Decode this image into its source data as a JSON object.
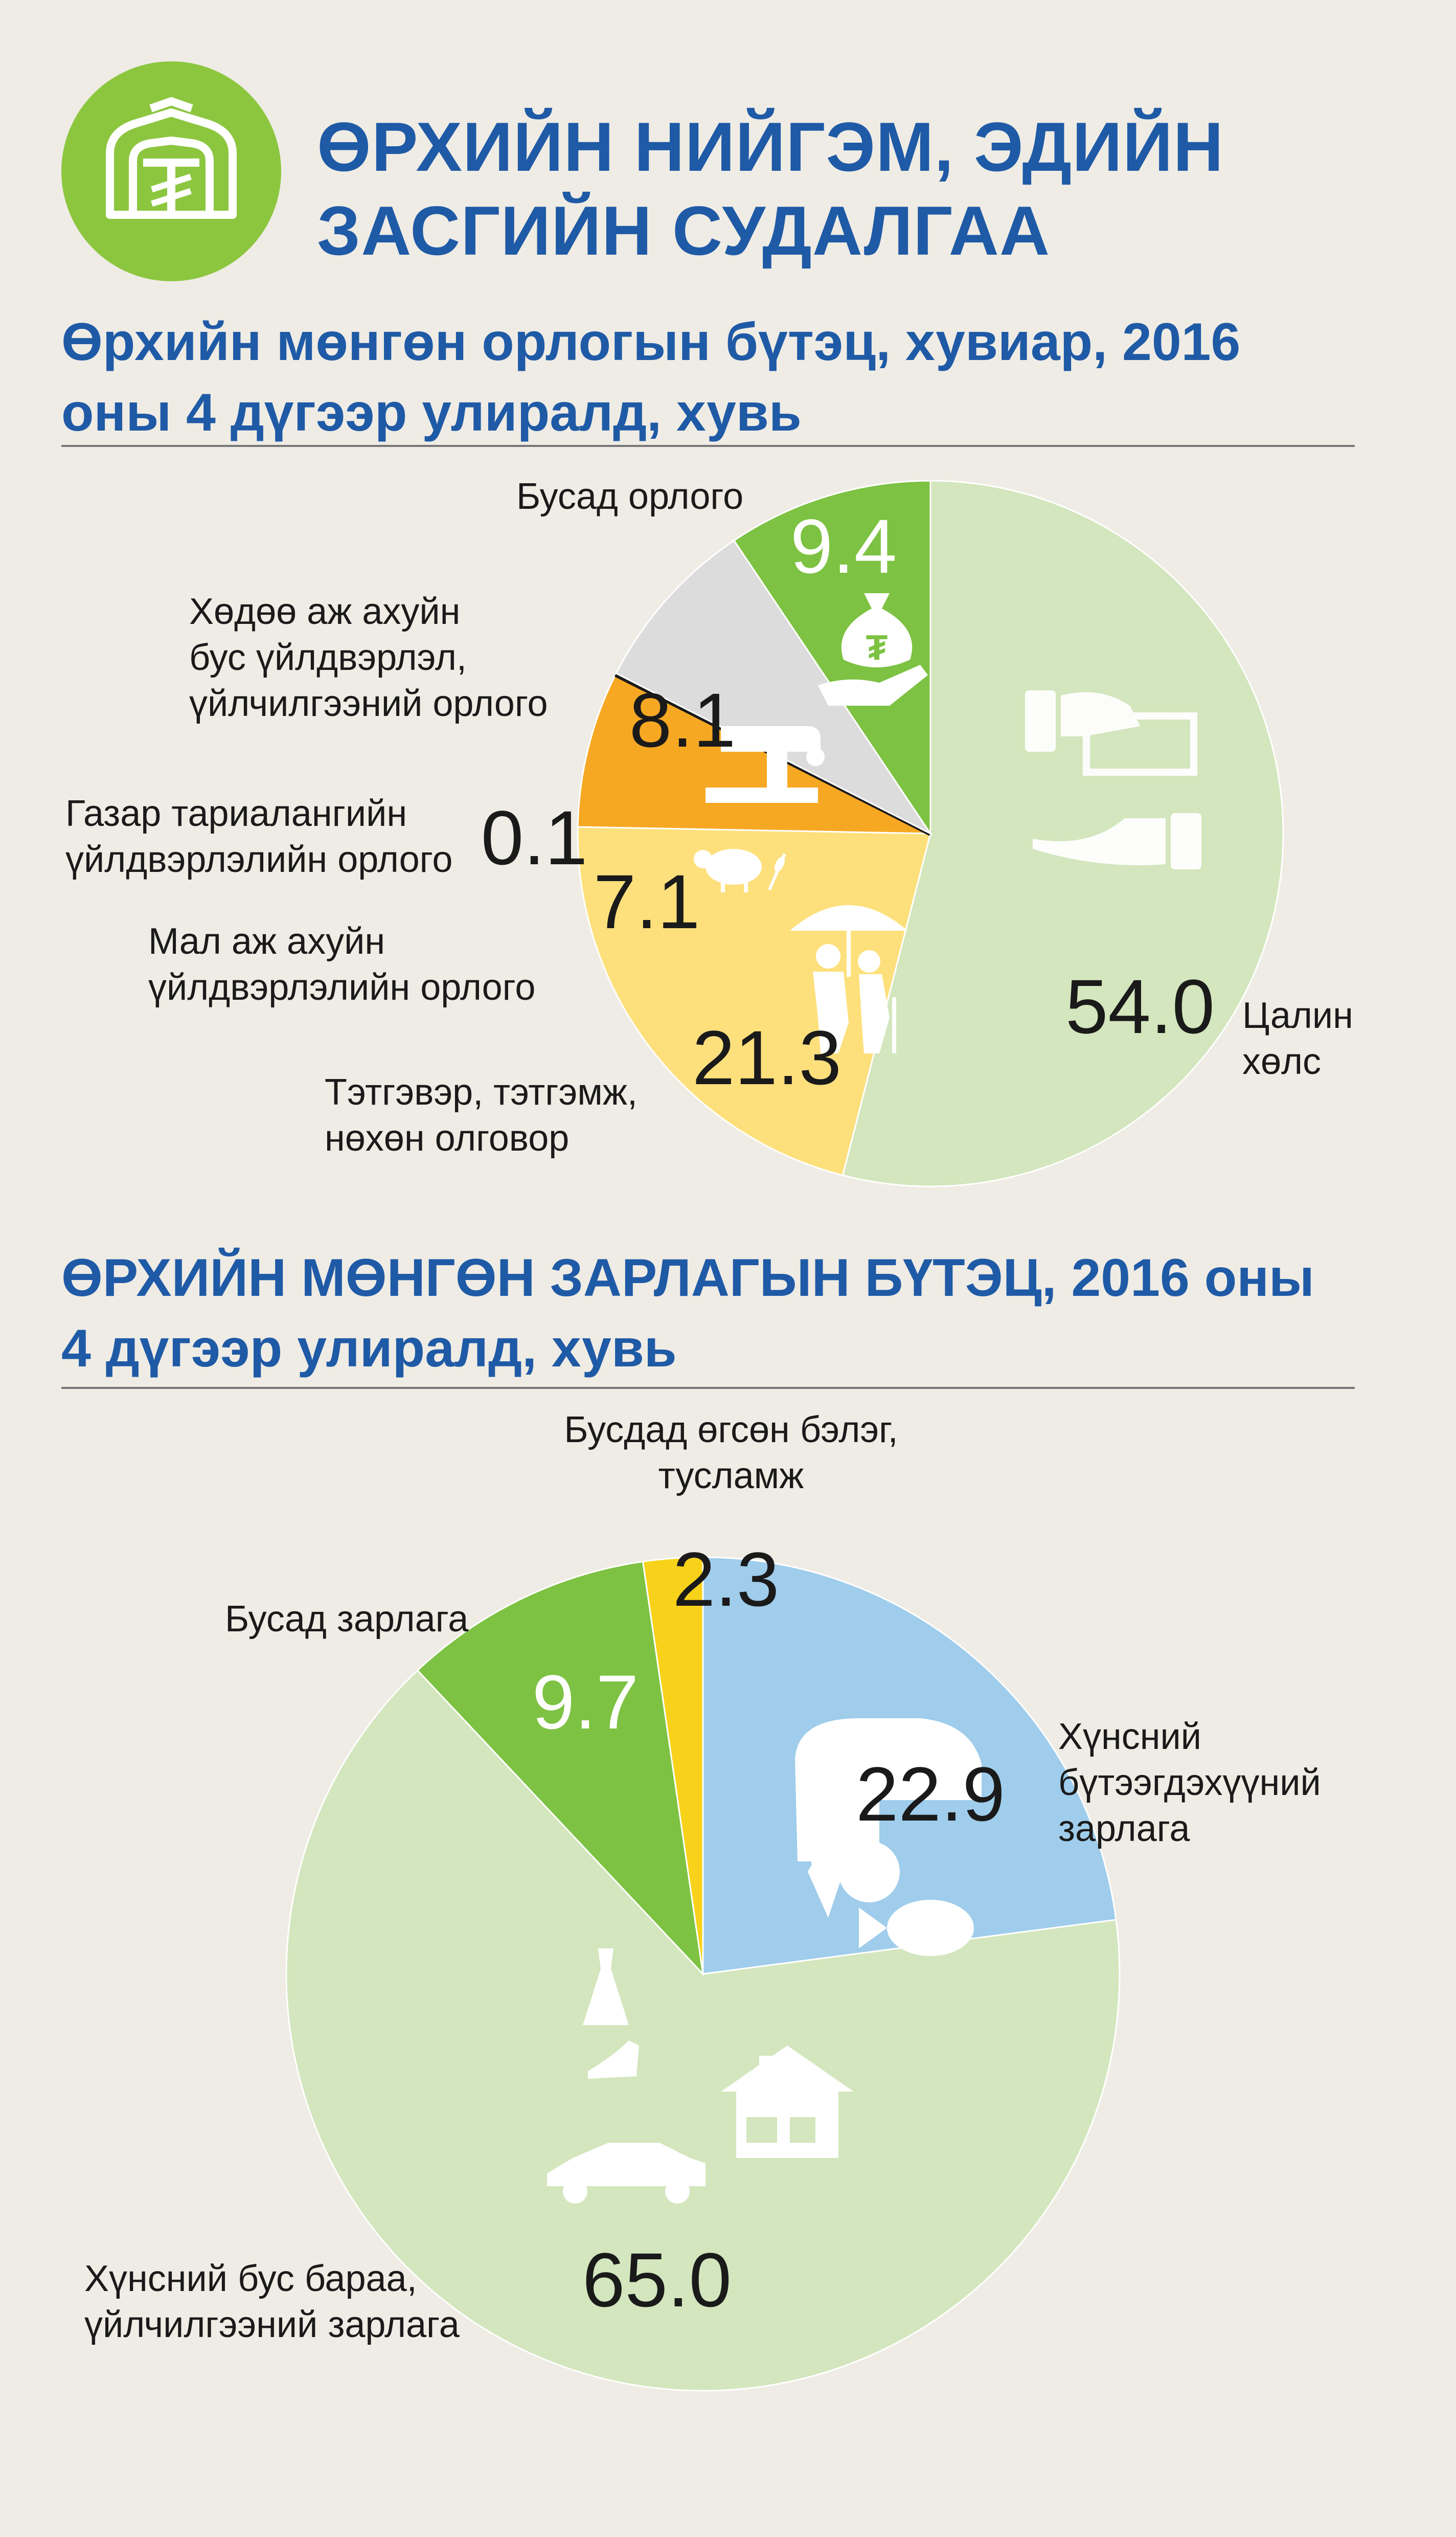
{
  "header": {
    "title": "ӨРХИЙН НИЙГЭМ, ЭДИЙН\nЗАСГИЙН СУДАЛГАА",
    "logo_icon": "ger-tugrik-icon",
    "logo_color": "#8cc63f"
  },
  "income_section": {
    "title": "Өрхийн мөнгөн орлогын бүтэц, хувиар, 2016\nоны 4 дүгээр улиралд, хувь"
  },
  "expense_section": {
    "title": "ӨРХИЙН МӨНГӨН ЗАРЛАГЫН БҮТЭЦ, 2016 оны\n4 дүгээр улиралд, хувь"
  },
  "chart_data": [
    {
      "type": "pie",
      "title": "Өрхийн мөнгөн орлогын бүтэц, хувиар, 2016 оны 4 дүгээр улиралд, хувь",
      "start": "12 o'clock, clockwise",
      "slices": [
        {
          "label": "Цалин хөлс",
          "value": 54.0,
          "color": "#d3e6bd",
          "icon": "hand-money-icon"
        },
        {
          "label": "Тэтгэвэр, тэтгэмж, нөхөн олговор",
          "value": 21.3,
          "color": "#fde07c",
          "icon": "elderly-umbrella-icon"
        },
        {
          "label": "Мал аж ахуйн үйлдвэрлэлийн орлого",
          "value": 7.1,
          "color": "#f7a823",
          "icon": "sheep-wheat-icon"
        },
        {
          "label": "Газар тариалангийн үйлдвэрлэлийн орлого",
          "value": 0.1,
          "color": "#1a1a1a",
          "icon": ""
        },
        {
          "label": "Хөдөө аж ахуйн бус үйлдвэрлэл, үйлчилгээний орлого",
          "value": 8.1,
          "color": "#dcdcdc",
          "icon": "sewing-machine-icon"
        },
        {
          "label": "Бусад орлого",
          "value": 9.4,
          "color": "#7dc242",
          "icon": "money-bag-hand-icon"
        }
      ]
    },
    {
      "type": "pie",
      "title": "ӨРХИЙН МӨНГӨН ЗАРЛАГЫН БҮТЭЦ, 2016 оны 4 дүгээр улиралд, хувь",
      "start": "12 o'clock, clockwise",
      "slices": [
        {
          "label": "Хүнсний бүтээгдэхүүний зарлага",
          "value": 22.9,
          "color": "#9fcdeb",
          "icon": "food-icon"
        },
        {
          "label": "Хүнсний бус бараа, үйлчилгээний зарлага",
          "value": 65.0,
          "color": "#d3e6bd",
          "icon": "house-car-dress-icon"
        },
        {
          "label": "Бусад зарлага",
          "value": 9.7,
          "color": "#7dc242",
          "icon": ""
        },
        {
          "label": "Бусдад өгсөн бэлэг, тусламж",
          "value": 2.3,
          "color": "#f8d21a",
          "icon": ""
        }
      ]
    }
  ]
}
